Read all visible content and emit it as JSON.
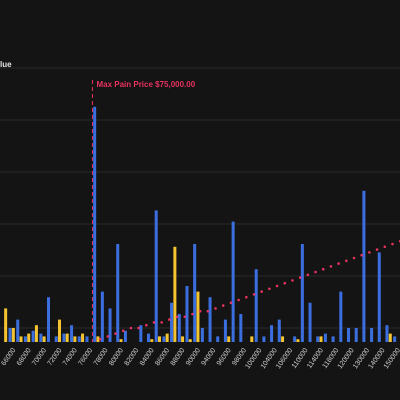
{
  "chart_data": {
    "type": "bar",
    "title": "",
    "legend_fragment": "lue",
    "max_pain": {
      "label": "Max Pain Price $75,000.00",
      "strike": 75000
    },
    "ylim": [
      0,
      1
    ],
    "x_tick_labels": [
      "66000",
      "68000",
      "70000",
      "72000",
      "74000",
      "76000",
      "78000",
      "80000",
      "82000",
      "84000",
      "86000",
      "88000",
      "90000",
      "94000",
      "96000",
      "98000",
      "100000",
      "104000",
      "106000",
      "110000",
      "114000",
      "118000",
      "120000",
      "130000",
      "140000",
      "150000"
    ],
    "categories": [
      "64000",
      "65000",
      "66000",
      "67000",
      "68000",
      "69000",
      "70000",
      "71000",
      "72000",
      "73000",
      "74000",
      "75000",
      "76000",
      "77000",
      "78000",
      "79000",
      "80000",
      "81000",
      "82000",
      "83000",
      "84000",
      "85000",
      "86000",
      "87000",
      "88000",
      "89000",
      "90000",
      "92000",
      "94000",
      "95000",
      "96000",
      "97000",
      "98000",
      "99000",
      "100000",
      "102000",
      "104000",
      "105000",
      "106000",
      "108000",
      "110000",
      "112000",
      "114000",
      "116000",
      "118000",
      "120000",
      "125000",
      "130000",
      "135000",
      "140000",
      "145000",
      "150000"
    ],
    "series": [
      {
        "values": [
          0.12,
          0.05,
          0.02,
          0.03,
          0.06,
          0.02,
          0.0,
          0.08,
          0.03,
          0.02,
          0.03,
          0.0,
          0.02,
          0.0,
          0.0,
          0.01,
          0.0,
          0.0,
          0.0,
          0.01,
          0.02,
          0.03,
          0.34,
          0.02,
          0.01,
          0.18,
          0.0,
          0.0,
          0.0,
          0.02,
          0.0,
          0.0,
          0.02,
          0.0,
          0.0,
          0.0,
          0.02,
          0.0,
          0.01,
          0.0,
          0.0,
          0.02,
          0.0,
          0.0,
          0.0,
          0.0,
          0.0,
          0.0,
          0.0,
          0.0,
          0.03,
          0.0
        ],
        "color": "#f5c531"
      },
      {
        "values": [
          0.05,
          0.08,
          0.02,
          0.04,
          0.03,
          0.16,
          0.02,
          0.03,
          0.06,
          0.02,
          0.02,
          0.84,
          0.18,
          0.12,
          0.35,
          0.04,
          0.0,
          0.06,
          0.03,
          0.47,
          0.02,
          0.14,
          0.1,
          0.2,
          0.35,
          0.05,
          0.16,
          0.02,
          0.08,
          0.43,
          0.1,
          0.0,
          0.26,
          0.02,
          0.06,
          0.08,
          0.0,
          0.02,
          0.35,
          0.14,
          0.02,
          0.03,
          0.02,
          0.18,
          0.05,
          0.05,
          0.54,
          0.05,
          0.32,
          0.06,
          0.02,
          0.03
        ],
        "color": "#3b6fe0"
      },
      {
        "values": [
          null,
          null,
          null,
          null,
          null,
          null,
          null,
          null,
          null,
          null,
          null,
          null,
          0.01,
          0.02,
          0.03,
          0.04,
          0.05,
          0.05,
          0.06,
          0.07,
          0.07,
          0.08,
          0.09,
          0.09,
          0.1,
          0.11,
          0.11,
          0.12,
          0.13,
          0.14,
          0.15,
          0.16,
          0.17,
          0.18,
          0.19,
          0.2,
          0.21,
          0.22,
          0.23,
          0.24,
          0.25,
          0.26,
          0.27,
          0.28,
          0.29,
          0.3,
          0.31,
          0.32,
          0.33,
          0.34,
          0.35,
          0.36
        ],
        "color": "#e8325f",
        "style": "dotted"
      }
    ],
    "grid": true
  }
}
